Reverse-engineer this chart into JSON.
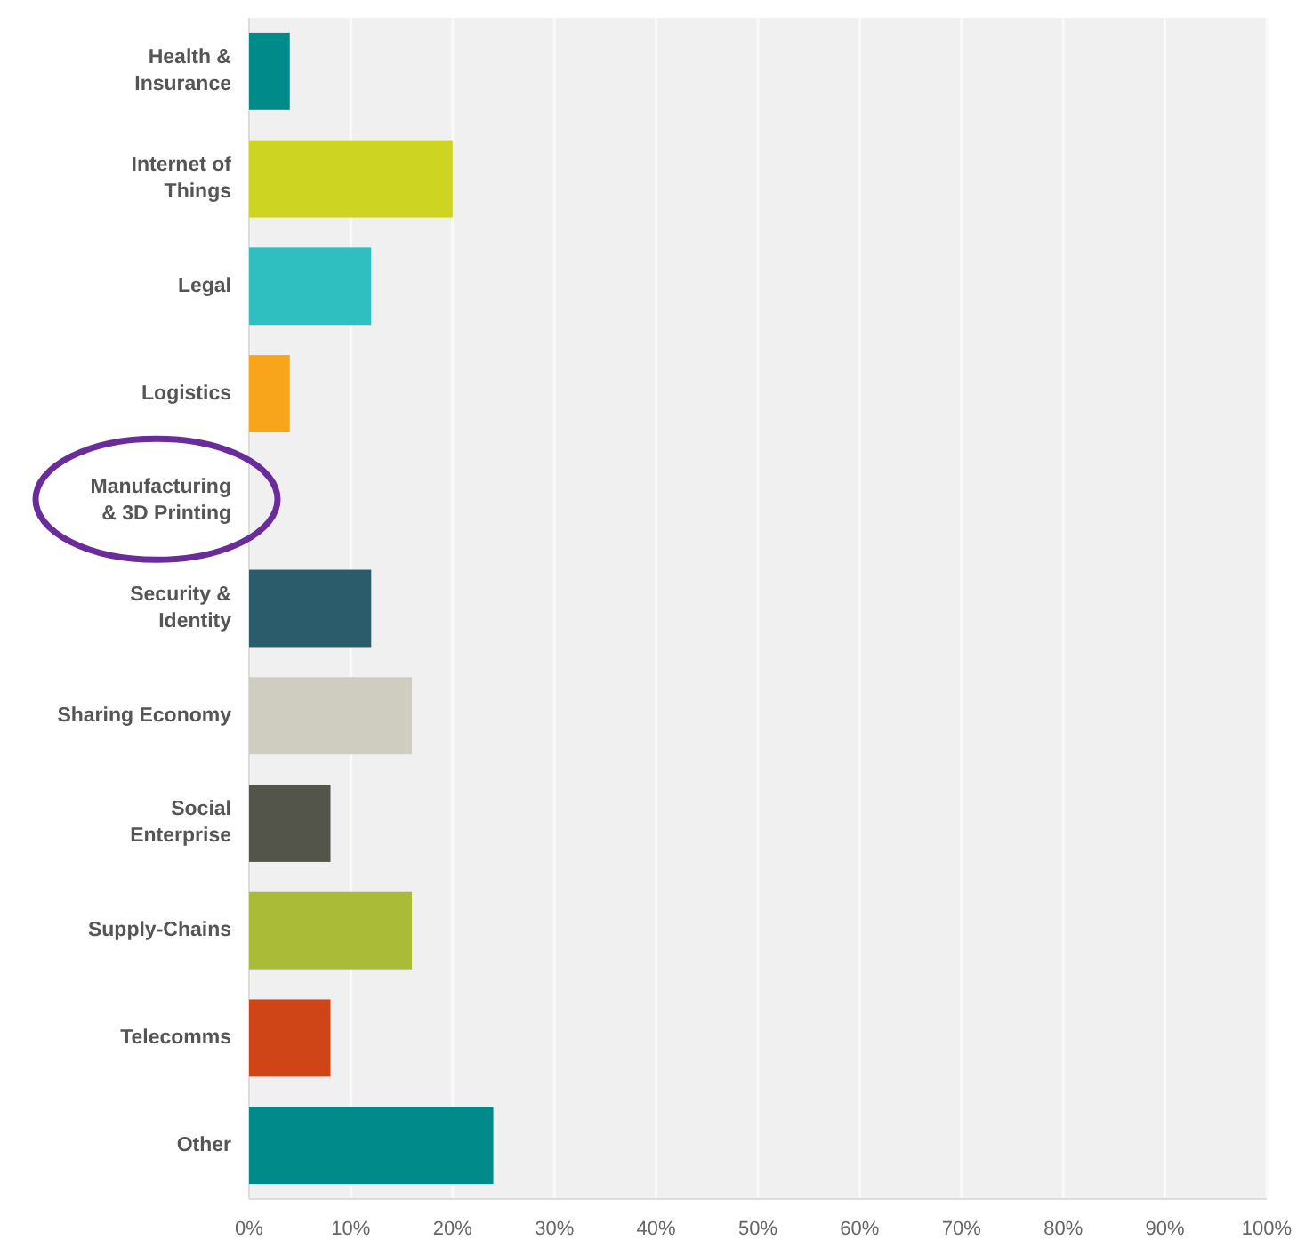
{
  "chart_data": {
    "type": "bar",
    "orientation": "horizontal",
    "categories": [
      "Health &\nInsurance",
      "Internet of\nThings",
      "Legal",
      "Logistics",
      "Manufacturing\n& 3D Printing",
      "Security &\nIdentity",
      "Sharing Economy",
      "Social\nEnterprise",
      "Supply-Chains",
      "Telecomms",
      "Other"
    ],
    "values": [
      4,
      20,
      12,
      4,
      0,
      12,
      16,
      8,
      16,
      8,
      24
    ],
    "colors": [
      "#008b8b",
      "#cdd422",
      "#30bfc0",
      "#f8a51c",
      "#7d9bb8",
      "#2b5c6b",
      "#cfcdbf",
      "#54554a",
      "#a9bb37",
      "#cf4517",
      "#008b8b"
    ],
    "xlim": [
      0,
      100
    ],
    "xticks": [
      {
        "value": 0,
        "label": "0%"
      },
      {
        "value": 10,
        "label": "10%"
      },
      {
        "value": 20,
        "label": "20%"
      },
      {
        "value": 30,
        "label": "30%"
      },
      {
        "value": 40,
        "label": "40%"
      },
      {
        "value": 50,
        "label": "50%"
      },
      {
        "value": 60,
        "label": "60%"
      },
      {
        "value": 70,
        "label": "70%"
      },
      {
        "value": 80,
        "label": "80%"
      },
      {
        "value": 90,
        "label": "90%"
      },
      {
        "value": 100,
        "label": "100%"
      }
    ],
    "grid": "x"
  }
}
